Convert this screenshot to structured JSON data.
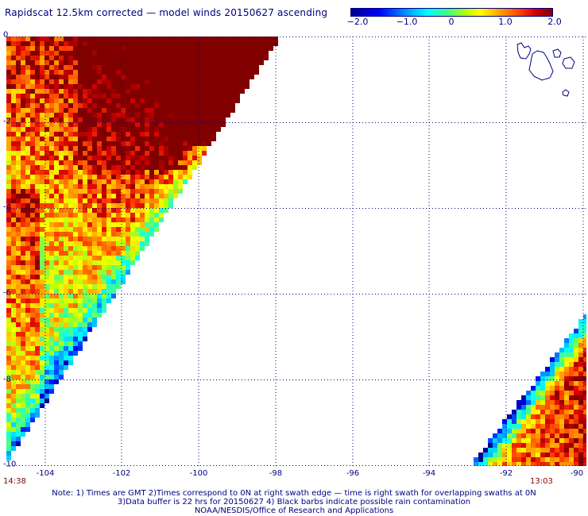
{
  "title": "Rapidscat 12.5km corrected — model winds 20150627 ascending",
  "colorbar": {
    "ticks": [
      "−2.0",
      "−1.0",
      "0",
      "1.0",
      "2.0"
    ],
    "range": [
      -2.0,
      2.0
    ],
    "colors": [
      "#00008b",
      "#0000ff",
      "#00ffff",
      "#ffff00",
      "#ff4000",
      "#800000"
    ]
  },
  "axes": {
    "lon_labels": [
      "-104",
      "-102",
      "-100",
      "-98",
      "-96",
      "-94",
      "-92",
      "-90"
    ],
    "lat_labels": [
      "0",
      "-2",
      "-4",
      "-6",
      "-8",
      "-10"
    ],
    "lon_range": [
      -104.5,
      -90
    ],
    "lat_range": [
      -10,
      0
    ],
    "grid_color": "#000080"
  },
  "times": {
    "left": "14:38",
    "right": "13:03"
  },
  "notes": [
    "Note: 1) Times are GMT 2)Times correspond to 0N at right swath edge — time is right swath for overlapping swaths at 0N",
    "3)Data buffer is 22 hrs for 20150627 4) Black barbs indicate possible rain contamination",
    "NOAA/NESDIS/Office of Research and Applications"
  ]
}
